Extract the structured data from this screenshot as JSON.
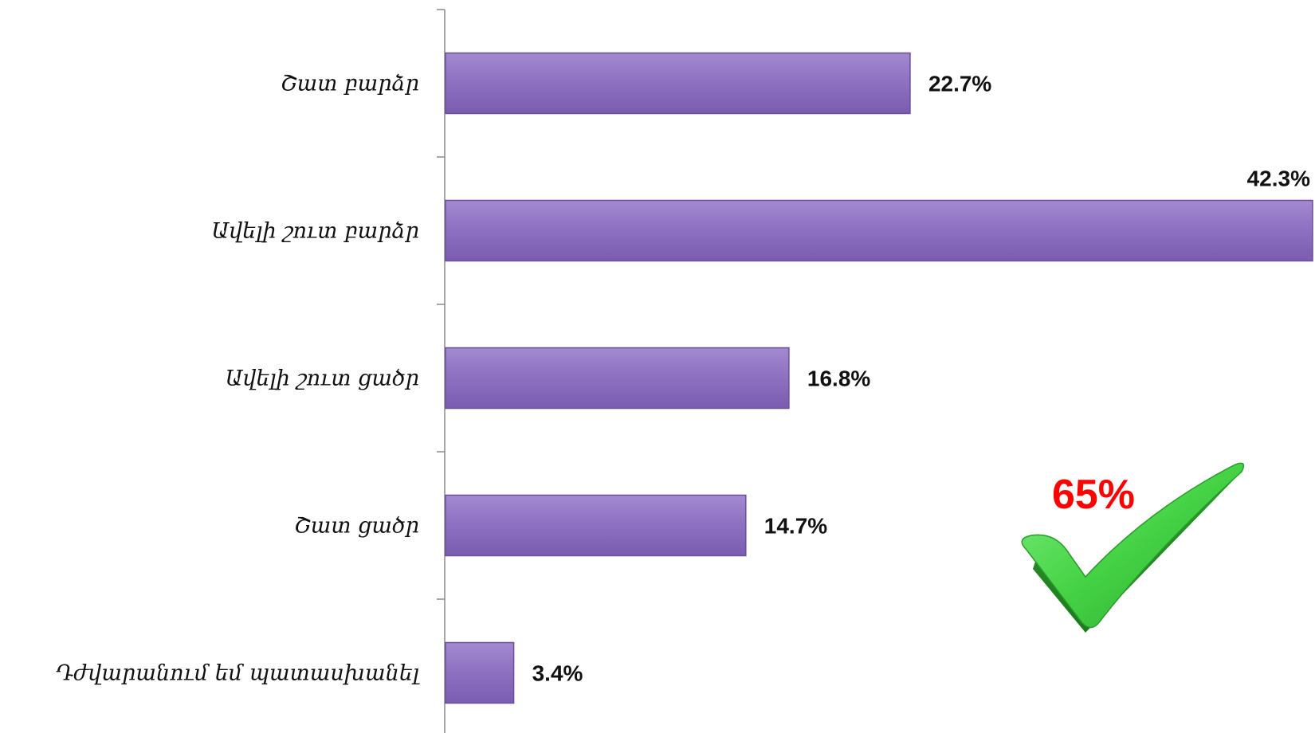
{
  "chart_data": {
    "type": "bar",
    "orientation": "horizontal",
    "categories": [
      "Շատ բարձր",
      "Ավելի շուտ բարձր",
      "Ավելի շուտ ցածր",
      "Շատ ցածր",
      "Դժվարանում եմ պատասխանել"
    ],
    "values": [
      22.7,
      42.3,
      16.8,
      14.7,
      3.4
    ],
    "value_labels": [
      "22.7%",
      "42.3%",
      "16.8%",
      "14.7%",
      "3.4%"
    ],
    "xlim": [
      0,
      42.3
    ],
    "grid": false,
    "legend": "none",
    "bar_color": "#8c6dbd",
    "bar_edge_color": "#6a4f98",
    "axis_color": "#8a8a8a"
  },
  "callout": {
    "text": "65%",
    "color": "#ff0000",
    "icon": "check-mark-icon",
    "icon_color": "#3fcf3f"
  }
}
